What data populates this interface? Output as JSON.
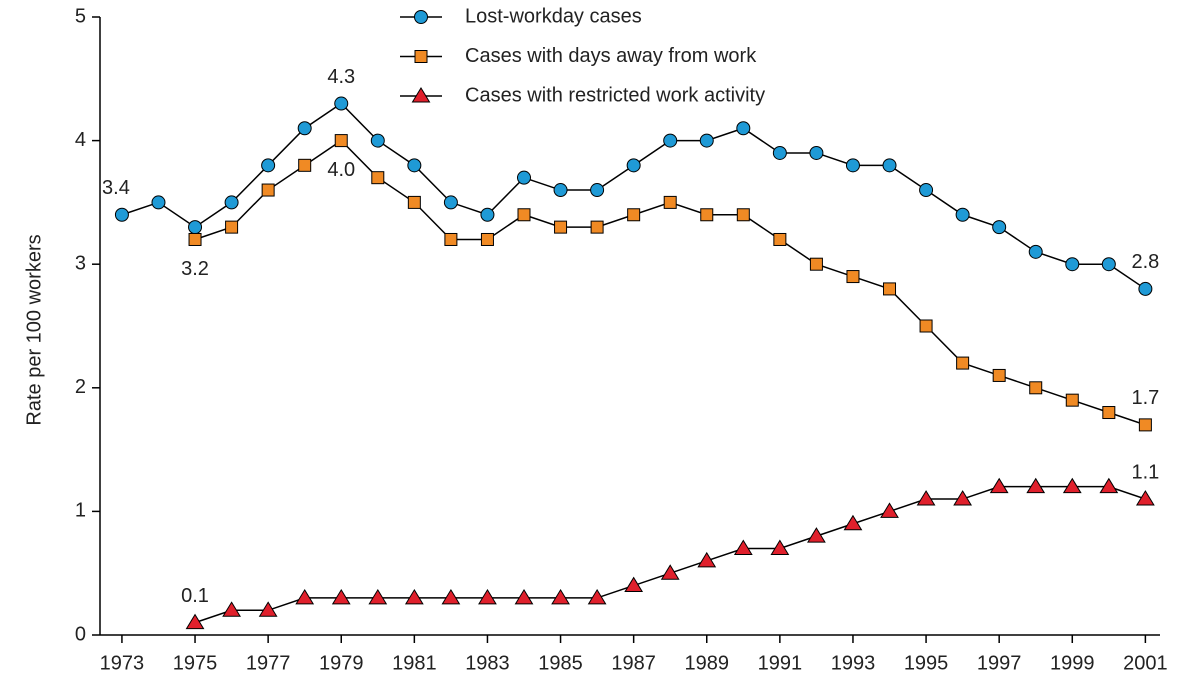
{
  "chart_data": {
    "type": "line",
    "y_label": "Rate per 100 workers",
    "x": [
      1973,
      1974,
      1975,
      1976,
      1977,
      1978,
      1979,
      1980,
      1981,
      1982,
      1983,
      1984,
      1985,
      1986,
      1987,
      1988,
      1989,
      1990,
      1991,
      1992,
      1993,
      1994,
      1995,
      1996,
      1997,
      1998,
      1999,
      2000,
      2001
    ],
    "series": [
      {
        "name": "Lost-workday cases",
        "color": "#1f9ad6",
        "marker": "circle",
        "values": [
          3.4,
          3.5,
          3.3,
          3.5,
          3.8,
          4.1,
          4.3,
          4.0,
          3.8,
          3.5,
          3.4,
          3.7,
          3.6,
          3.6,
          3.8,
          4.0,
          4.0,
          4.1,
          3.9,
          3.9,
          3.8,
          3.8,
          3.6,
          3.4,
          3.3,
          3.1,
          3.0,
          3.0,
          2.8
        ],
        "value_labels": [
          "3.4",
          null,
          null,
          null,
          null,
          null,
          "4.3",
          null,
          null,
          null,
          null,
          null,
          null,
          null,
          null,
          null,
          null,
          null,
          null,
          null,
          null,
          null,
          null,
          null,
          null,
          null,
          null,
          null,
          "2.8"
        ]
      },
      {
        "name": "Cases with days away from work",
        "color": "#f08a24",
        "marker": "square",
        "values": [
          null,
          null,
          3.2,
          3.3,
          3.6,
          3.8,
          4.0,
          3.7,
          3.5,
          3.2,
          3.2,
          3.4,
          3.3,
          3.3,
          3.4,
          3.5,
          3.4,
          3.4,
          3.2,
          3.0,
          2.9,
          2.8,
          2.5,
          2.2,
          2.1,
          2.0,
          1.9,
          1.8,
          1.7
        ],
        "value_labels": [
          null,
          null,
          "3.2",
          null,
          null,
          null,
          "4.0",
          null,
          null,
          null,
          null,
          null,
          null,
          null,
          null,
          null,
          null,
          null,
          null,
          null,
          null,
          null,
          null,
          null,
          null,
          null,
          null,
          null,
          "1.7"
        ]
      },
      {
        "name": "Cases with restricted work activity",
        "color": "#e0202c",
        "marker": "triangle",
        "values": [
          null,
          null,
          0.1,
          0.2,
          0.2,
          0.3,
          0.3,
          0.3,
          0.3,
          0.3,
          0.3,
          0.3,
          0.3,
          0.3,
          0.4,
          0.5,
          0.6,
          0.7,
          0.7,
          0.8,
          0.9,
          1.0,
          1.1,
          1.1,
          1.2,
          1.2,
          1.2,
          1.2,
          1.1
        ],
        "value_labels": [
          null,
          null,
          "0.1",
          null,
          null,
          null,
          null,
          null,
          null,
          null,
          null,
          null,
          null,
          null,
          null,
          null,
          null,
          null,
          null,
          null,
          null,
          null,
          null,
          null,
          null,
          null,
          null,
          null,
          "1.1"
        ]
      }
    ],
    "xlim": [
      1972.4,
      2001.4
    ],
    "xticks": [
      1973,
      1975,
      1977,
      1979,
      1981,
      1983,
      1985,
      1987,
      1989,
      1991,
      1993,
      1995,
      1997,
      1999,
      2001
    ],
    "ylim": [
      0,
      5
    ],
    "yticks": [
      0,
      1,
      2,
      3,
      4,
      5
    ],
    "grid": false,
    "legend": "top"
  }
}
